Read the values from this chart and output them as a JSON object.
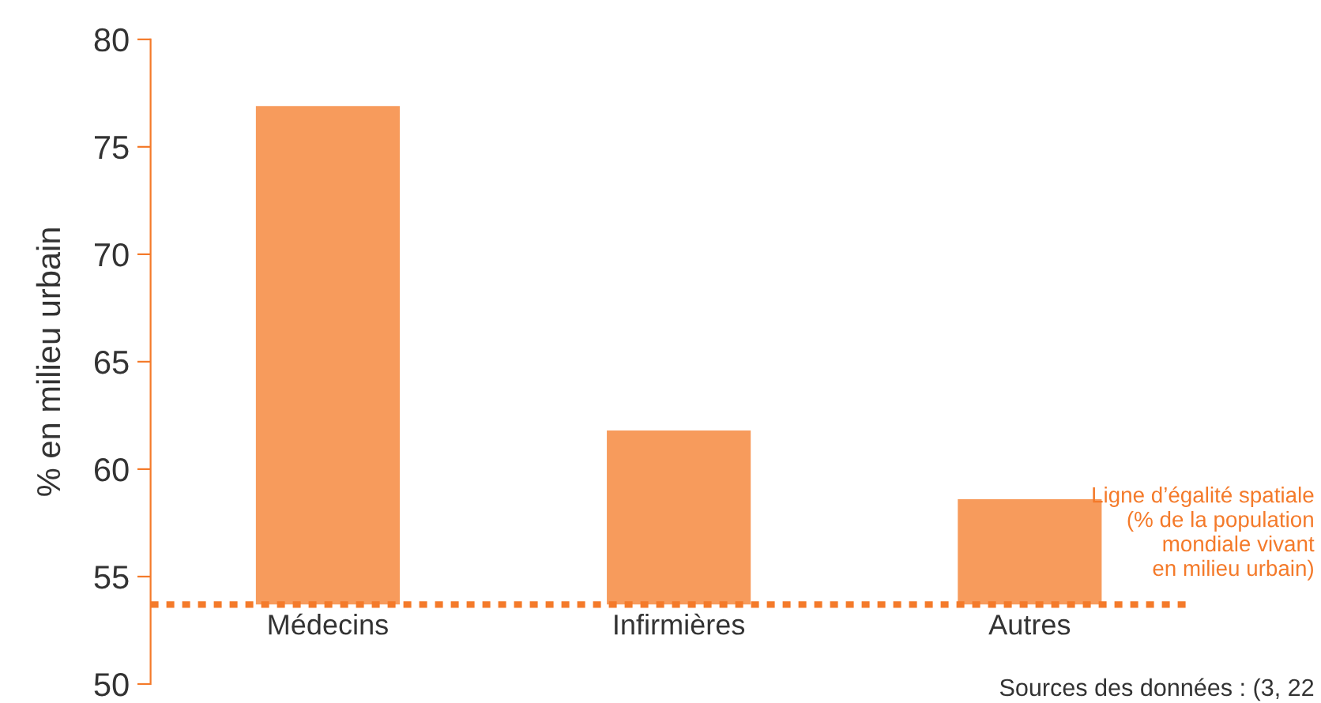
{
  "chart_data": {
    "type": "bar",
    "ylabel": "% en milieu urbain",
    "categories": [
      "Médecins",
      "Infirmières",
      "Autres"
    ],
    "base": [
      53.7,
      53.7,
      53.7
    ],
    "values": [
      23.2,
      8.1,
      4.9
    ],
    "color": "#f79b5c",
    "ylim": [
      50,
      80
    ],
    "yticks": [
      50,
      55,
      60,
      65,
      70,
      75,
      80
    ],
    "ref_lines": [
      {
        "axis": "y",
        "value": 53.7,
        "label": "Ligne d’égalité spatiale\n(% de la population\nmondiale vivant\nen milieu urbain)",
        "color": "#f47a2a",
        "line_style": "dotted"
      }
    ],
    "annotations": [
      "Sources des données : (3, 22"
    ]
  }
}
